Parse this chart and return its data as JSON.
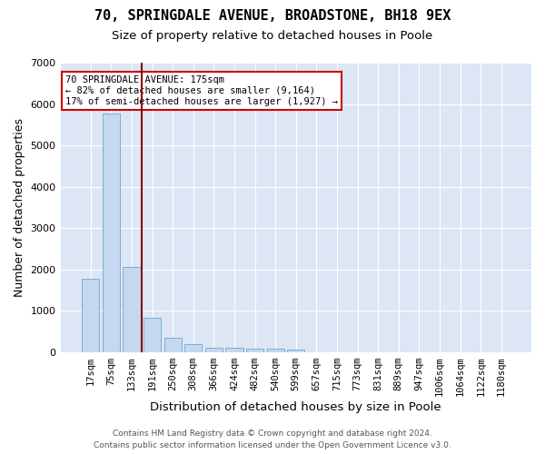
{
  "title1": "70, SPRINGDALE AVENUE, BROADSTONE, BH18 9EX",
  "title2": "Size of property relative to detached houses in Poole",
  "xlabel": "Distribution of detached houses by size in Poole",
  "ylabel": "Number of detached properties",
  "categories": [
    "17sqm",
    "75sqm",
    "133sqm",
    "191sqm",
    "250sqm",
    "308sqm",
    "366sqm",
    "424sqm",
    "482sqm",
    "540sqm",
    "599sqm",
    "657sqm",
    "715sqm",
    "773sqm",
    "831sqm",
    "889sqm",
    "947sqm",
    "1006sqm",
    "1064sqm",
    "1122sqm",
    "1180sqm"
  ],
  "values": [
    1780,
    5780,
    2060,
    820,
    340,
    185,
    115,
    100,
    80,
    75,
    70,
    0,
    0,
    0,
    0,
    0,
    0,
    0,
    0,
    0,
    0
  ],
  "bar_color": "#c5d8ef",
  "bar_edge_color": "#7aafd4",
  "vline_color": "#8b0000",
  "annotation_text": "70 SPRINGDALE AVENUE: 175sqm\n← 82% of detached houses are smaller (9,164)\n17% of semi-detached houses are larger (1,927) →",
  "annotation_box_color": "white",
  "annotation_box_edge_color": "#cc0000",
  "ylim": [
    0,
    7000
  ],
  "yticks": [
    0,
    1000,
    2000,
    3000,
    4000,
    5000,
    6000,
    7000
  ],
  "footer1": "Contains HM Land Registry data © Crown copyright and database right 2024.",
  "footer2": "Contains public sector information licensed under the Open Government Licence v3.0.",
  "plot_bg_color": "#dce6f5",
  "grid_color": "#ffffff",
  "title1_fontsize": 11,
  "title2_fontsize": 9.5,
  "tick_fontsize": 7.5,
  "ylabel_fontsize": 9,
  "xlabel_fontsize": 9.5,
  "annotation_fontsize": 7.5,
  "footer_fontsize": 6.5
}
